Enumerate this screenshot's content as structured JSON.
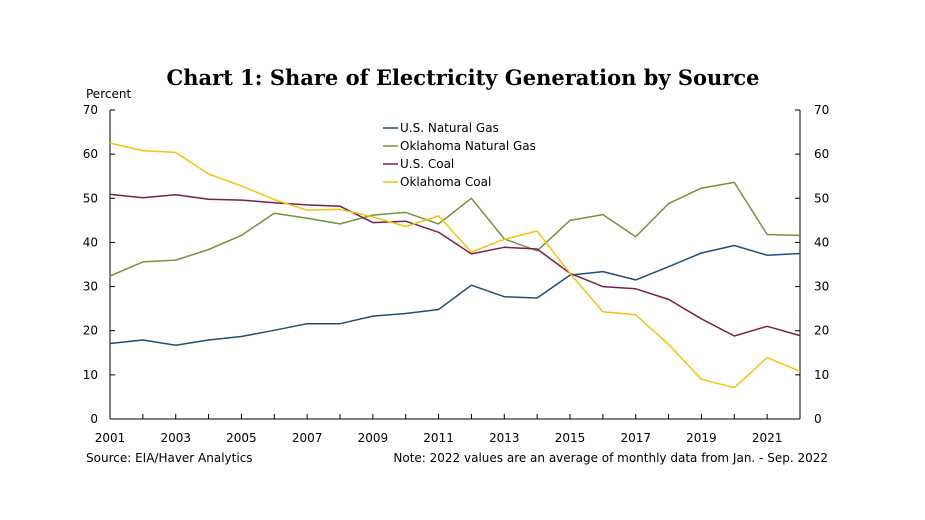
{
  "chart_data": {
    "type": "line",
    "title": "Chart 1: Share of Electricity Generation by Source",
    "ylabel": "Percent",
    "xlabel": "",
    "x": [
      2001,
      2002,
      2003,
      2004,
      2005,
      2006,
      2007,
      2008,
      2009,
      2010,
      2011,
      2012,
      2013,
      2014,
      2015,
      2016,
      2017,
      2018,
      2019,
      2020,
      2021,
      2022
    ],
    "xlim": [
      2001,
      2022
    ],
    "ylim": [
      0,
      70
    ],
    "x_ticks": [
      "2001",
      "2003",
      "2005",
      "2007",
      "2009",
      "2011",
      "2013",
      "2015",
      "2017",
      "2019",
      "2021"
    ],
    "y_ticks": [
      "0",
      "10",
      "20",
      "30",
      "40",
      "50",
      "60",
      "70"
    ],
    "secondary_y_axis": true,
    "grid": false,
    "legend_position": "top-center",
    "series": [
      {
        "name": "U.S. Natural Gas",
        "color": "#1f4e79",
        "values": [
          17.1,
          17.9,
          16.7,
          17.9,
          18.7,
          20.1,
          21.6,
          21.6,
          23.3,
          23.9,
          24.8,
          30.3,
          27.7,
          27.4,
          32.6,
          33.4,
          31.5,
          34.5,
          37.6,
          39.3,
          37.1,
          37.5
        ]
      },
      {
        "name": "Oklahoma Natural Gas",
        "color": "#76933c",
        "values": [
          32.4,
          35.6,
          36.0,
          38.4,
          41.6,
          46.6,
          45.5,
          44.2,
          46.2,
          46.8,
          44.2,
          50.0,
          40.8,
          38.1,
          45.0,
          46.3,
          41.3,
          48.8,
          52.3,
          53.6,
          41.8,
          41.6
        ]
      },
      {
        "name": "U.S. Coal",
        "color": "#7a1f4b",
        "values": [
          50.9,
          50.1,
          50.8,
          49.8,
          49.6,
          49.0,
          48.5,
          48.2,
          44.5,
          44.8,
          42.3,
          37.4,
          38.9,
          38.5,
          33.0,
          30.0,
          29.5,
          27.1,
          22.7,
          18.8,
          21.0,
          18.9
        ]
      },
      {
        "name": "Oklahoma Coal",
        "color": "#f2c40c",
        "values": [
          62.5,
          60.8,
          60.4,
          55.5,
          52.8,
          49.7,
          47.3,
          47.5,
          45.8,
          43.6,
          46.0,
          37.8,
          40.7,
          42.6,
          33.0,
          24.3,
          23.6,
          16.9,
          9.0,
          7.1,
          13.9,
          10.8
        ]
      }
    ],
    "source": "Source: EIA/Haver Analytics",
    "note": "Note: 2022 values are an average of monthly data from Jan. - Sep. 2022"
  }
}
